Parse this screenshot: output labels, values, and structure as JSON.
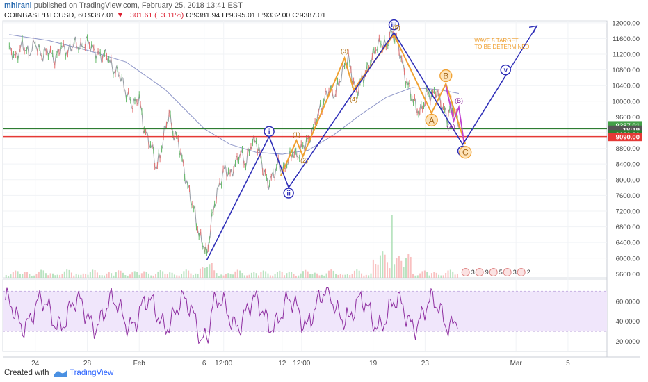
{
  "header": {
    "user": "mhirani",
    "published": "published on TradingView.com, February 25, 2018 13:41 EST",
    "symbol": "COINBASE:BTCUSD, 60",
    "last": "9387.01",
    "change": "−301.61 (−3.11%)",
    "ohlc": "O:9381.94 H:9395.01 L:9332.00 C:9387.01"
  },
  "chart_data": {
    "type": "line",
    "title": "COINBASE:BTCUSD, 60",
    "price_axis": {
      "ticks": [
        5600,
        6000,
        6400,
        6800,
        7200,
        7600,
        8000,
        8400,
        8800,
        9200,
        9600,
        10000,
        10400,
        10800,
        11200,
        11600,
        12000
      ],
      "labels": [
        "5600.00",
        "6000.00",
        "6400.00",
        "6800.00",
        "7200.00",
        "7600.00",
        "8000.00",
        "8400.00",
        "8800.00",
        "9200.00",
        "9600.00",
        "10000.00",
        "10400.00",
        "10800.00",
        "11200.00",
        "11600.00",
        "12000.00"
      ],
      "ylim": [
        5500,
        12050
      ]
    },
    "time_axis": {
      "labels": [
        "24",
        "28",
        "Feb",
        "6",
        "12:00",
        "12",
        "12:00",
        "19",
        "23",
        "Mar",
        "5"
      ],
      "positions_days": [
        -8,
        -4,
        0,
        5,
        6.5,
        11,
        12.5,
        18,
        22,
        29,
        33
      ]
    },
    "price_series": [
      [
        -10,
        11350
      ],
      [
        -9.5,
        11100
      ],
      [
        -9,
        11450
      ],
      [
        -8.5,
        11200
      ],
      [
        -8,
        11500
      ],
      [
        -7.5,
        11150
      ],
      [
        -7,
        11300
      ],
      [
        -6.5,
        11050
      ],
      [
        -6,
        11400
      ],
      [
        -5.5,
        11250
      ],
      [
        -5,
        11500
      ],
      [
        -4.5,
        11350
      ],
      [
        -4,
        11550
      ],
      [
        -3.5,
        11300
      ],
      [
        -3,
        11150
      ],
      [
        -2.5,
        11200
      ],
      [
        -2,
        10800
      ],
      [
        -1.5,
        10700
      ],
      [
        -1,
        10200
      ],
      [
        -0.5,
        9900
      ],
      [
        0,
        10100
      ],
      [
        0.3,
        9400
      ],
      [
        0.6,
        9100
      ],
      [
        1,
        8800
      ],
      [
        1.3,
        8300
      ],
      [
        1.6,
        8600
      ],
      [
        2,
        9300
      ],
      [
        2.3,
        9700
      ],
      [
        2.6,
        9200
      ],
      [
        3,
        9000
      ],
      [
        3.3,
        8500
      ],
      [
        3.6,
        8000
      ],
      [
        4,
        7500
      ],
      [
        4.3,
        7100
      ],
      [
        4.6,
        6600
      ],
      [
        5,
        6300
      ],
      [
        5.2,
        6050
      ],
      [
        5.5,
        6800
      ],
      [
        5.8,
        7400
      ],
      [
        6.2,
        7900
      ],
      [
        6.6,
        8300
      ],
      [
        7,
        8100
      ],
      [
        7.4,
        8400
      ],
      [
        7.8,
        8700
      ],
      [
        8.2,
        8400
      ],
      [
        8.6,
        8900
      ],
      [
        9,
        9000
      ],
      [
        9.3,
        8600
      ],
      [
        9.6,
        8200
      ],
      [
        9.9,
        7900
      ],
      [
        10.3,
        8100
      ],
      [
        10.7,
        8400
      ],
      [
        11.1,
        8250
      ],
      [
        11.5,
        8500
      ],
      [
        11.8,
        8700
      ],
      [
        12.2,
        8600
      ],
      [
        12.6,
        8850
      ],
      [
        13,
        9000
      ],
      [
        13.4,
        9300
      ],
      [
        13.8,
        9700
      ],
      [
        14.2,
        10000
      ],
      [
        14.6,
        10300
      ],
      [
        15,
        10150
      ],
      [
        15.4,
        10500
      ],
      [
        15.8,
        10900
      ],
      [
        16.1,
        11100
      ],
      [
        16.4,
        10600
      ],
      [
        16.7,
        10200
      ],
      [
        17,
        10450
      ],
      [
        17.4,
        10700
      ],
      [
        17.8,
        11000
      ],
      [
        18.2,
        11350
      ],
      [
        18.6,
        11500
      ],
      [
        19,
        11400
      ],
      [
        19.4,
        11750
      ],
      [
        19.8,
        11600
      ],
      [
        20.1,
        11200
      ],
      [
        20.4,
        10700
      ],
      [
        20.7,
        10400
      ],
      [
        21,
        10100
      ],
      [
        21.3,
        9850
      ],
      [
        21.6,
        9700
      ],
      [
        21.9,
        9950
      ],
      [
        22.2,
        10250
      ],
      [
        22.5,
        10100
      ],
      [
        22.8,
        10300
      ],
      [
        23.1,
        10050
      ],
      [
        23.4,
        9800
      ],
      [
        23.7,
        9600
      ],
      [
        24,
        9900
      ],
      [
        24.3,
        9700
      ],
      [
        24.6,
        9387
      ]
    ],
    "rsi": {
      "ticks": [
        20,
        40,
        60
      ],
      "labels": [
        "20.0000",
        "40.0000",
        "60.0000"
      ],
      "band": [
        30,
        70
      ],
      "ylim": [
        10,
        82
      ]
    },
    "horizontal_lines": [
      {
        "price": 9300,
        "color": "#2e7d32"
      },
      {
        "price": 9100,
        "color": "#e53935"
      }
    ],
    "price_tags": [
      {
        "price": 9387.01,
        "text": "9387.01",
        "color": "#43a047"
      },
      {
        "price": 9275,
        "text": "18:19",
        "color": "#555555"
      },
      {
        "price": 9160,
        "text": "9160.00",
        "color": "#2e7d32"
      },
      {
        "price": 9090,
        "text": "9090.00",
        "color": "#e53935"
      }
    ],
    "blue_wave": {
      "color": "#2f2fb8",
      "points": [
        [
          5.2,
          5950
        ],
        [
          10.0,
          9100
        ],
        [
          11.5,
          7800
        ],
        [
          19.6,
          11750
        ],
        [
          24.9,
          8900
        ],
        [
          28.2,
          10650
        ]
      ],
      "arrow_to": [
        30.6,
        11920
      ],
      "labels": [
        {
          "text": "i",
          "x": 10.0,
          "y": 9230,
          "circled": true
        },
        {
          "text": "ii",
          "x": 11.5,
          "y": 7660,
          "circled": true
        },
        {
          "text": "iii",
          "x": 19.6,
          "y": 11950,
          "circled": true
        },
        {
          "text": "iv",
          "x": 24.9,
          "y": 8730,
          "circled": true
        },
        {
          "text": "v",
          "x": 28.2,
          "y": 10800,
          "circled": true
        }
      ]
    },
    "orange_wave": {
      "color": "#f0a030",
      "points": [
        [
          10.9,
          8100
        ],
        [
          12.1,
          9000
        ],
        [
          12.6,
          8600
        ],
        [
          15.8,
          11100
        ],
        [
          16.5,
          10300
        ],
        [
          19.6,
          11700
        ],
        [
          22.5,
          9700
        ],
        [
          23.6,
          10450
        ],
        [
          25.1,
          8900
        ]
      ],
      "labels": [
        {
          "text": "(1)",
          "x": 12.1,
          "y": 9090
        },
        {
          "text": "(2)",
          "x": 12.7,
          "y": 8440
        },
        {
          "text": "(3)",
          "x": 15.8,
          "y": 11230
        },
        {
          "text": "(4)",
          "x": 16.5,
          "y": 10000
        },
        {
          "text": "(5)",
          "x": 19.8,
          "y": 11830
        }
      ],
      "circled_labels": [
        {
          "text": "A",
          "x": 22.5,
          "y": 9520
        },
        {
          "text": "B",
          "x": 23.6,
          "y": 10650
        },
        {
          "text": "C",
          "x": 25.1,
          "y": 8700
        }
      ]
    },
    "magenta_wave": {
      "color": "#c040d0",
      "points": [
        [
          23.6,
          10400
        ],
        [
          24.2,
          9500
        ],
        [
          24.6,
          9850
        ],
        [
          25.0,
          8950
        ]
      ],
      "labels": [
        {
          "text": "(A)",
          "x": 24.0,
          "y": 9300
        },
        {
          "text": "(B)",
          "x": 24.6,
          "y": 9960
        }
      ]
    },
    "annotation": {
      "lines": [
        "WAVE 5 TARGET",
        "TO BE DETERMINED."
      ],
      "x": 25.8,
      "y": 11500,
      "color": "#f0a030"
    },
    "ma_series": [
      [
        -10,
        11700
      ],
      [
        -7,
        11550
      ],
      [
        -4,
        11300
      ],
      [
        -1,
        11000
      ],
      [
        2,
        10300
      ],
      [
        5,
        9300
      ],
      [
        7,
        8900
      ],
      [
        9,
        8700
      ],
      [
        11,
        8650
      ],
      [
        13,
        8750
      ],
      [
        15,
        9150
      ],
      [
        17,
        9650
      ],
      [
        19,
        10100
      ],
      [
        21,
        10350
      ],
      [
        23,
        10300
      ],
      [
        24.6,
        10200
      ]
    ],
    "indicator_badges": [
      "3",
      "9",
      "5",
      "34",
      "2"
    ]
  },
  "footer": {
    "created": "Created with",
    "brand": "TradingView"
  }
}
